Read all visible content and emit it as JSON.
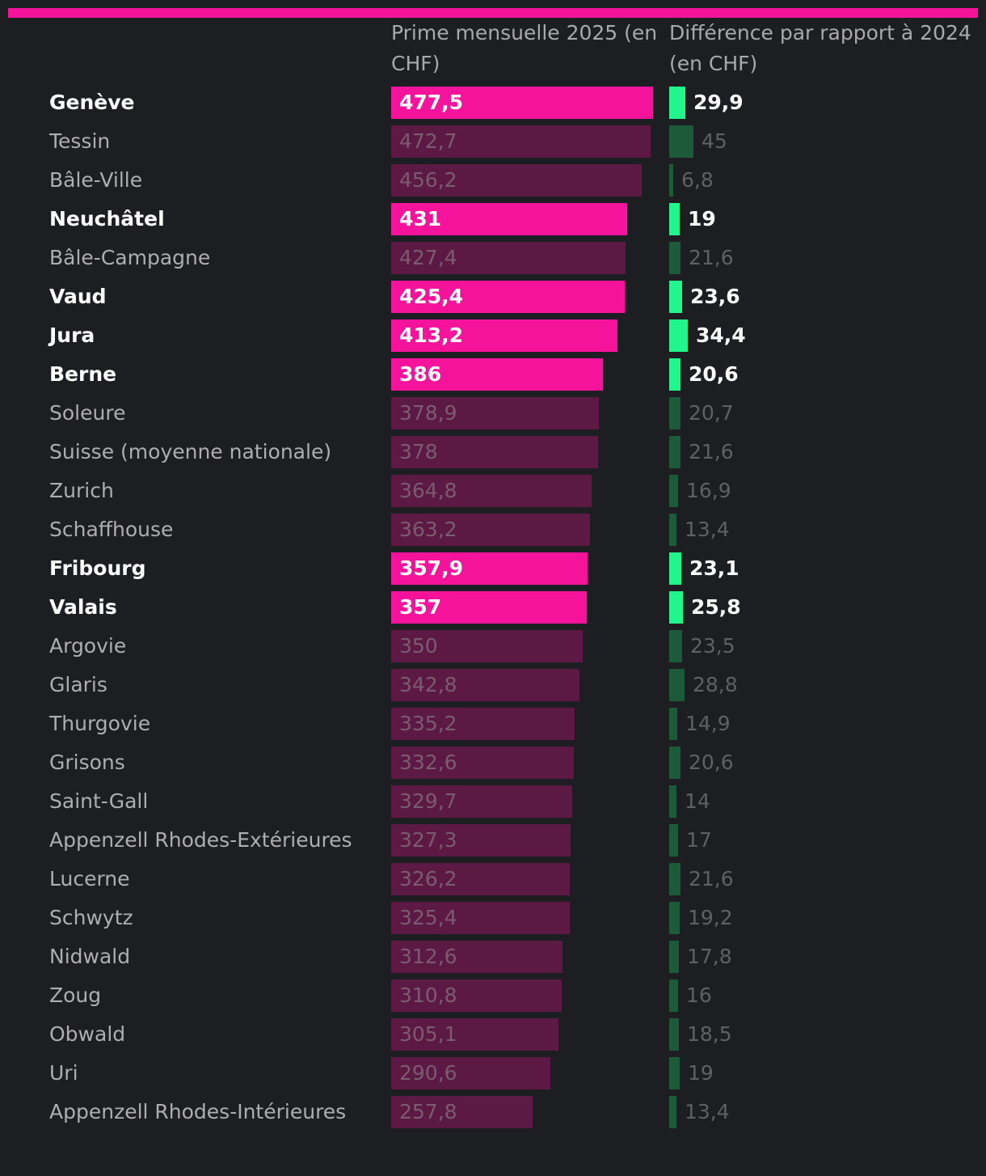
{
  "colors": {
    "background": "#1d1e21",
    "accent": "#f4139a",
    "accent_dim": "#5c1944",
    "green": "#22f58c",
    "green_dim": "#1c5a3a"
  },
  "chart_data": {
    "type": "bar",
    "orientation": "horizontal",
    "column_headers": {
      "prime": "Prime mensuelle 2025 (en CHF)",
      "diff": "Différence par rapport à 2024 (en CHF)"
    },
    "categories": [
      "Genève",
      "Tessin",
      "Bâle-Ville",
      "Neuchâtel",
      "Bâle-Campagne",
      "Vaud",
      "Jura",
      "Berne",
      "Soleure",
      "Suisse (moyenne nationale)",
      "Zurich",
      "Schaffhouse",
      "Fribourg",
      "Valais",
      "Argovie",
      "Glaris",
      "Thurgovie",
      "Grisons",
      "Saint-Gall",
      "Appenzell Rhodes-Extérieures",
      "Lucerne",
      "Schwytz",
      "Nidwald",
      "Zoug",
      "Obwald",
      "Uri",
      "Appenzell Rhodes-Intérieures"
    ],
    "series": [
      {
        "values": [
          477.5,
          472.7,
          456.2,
          431,
          427.4,
          425.4,
          413.2,
          386,
          378.9,
          378,
          364.8,
          363.2,
          357.9,
          357,
          350,
          342.8,
          335.2,
          332.6,
          329.7,
          327.3,
          326.2,
          325.4,
          312.6,
          310.8,
          305.1,
          290.6,
          257.8
        ],
        "labels": [
          "477,5",
          "472,7",
          "456,2",
          "431",
          "427,4",
          "425,4",
          "413,2",
          "386",
          "378,9",
          "378",
          "364,8",
          "363,2",
          "357,9",
          "357",
          "350",
          "342,8",
          "335,2",
          "332,6",
          "329,7",
          "327,3",
          "326,2",
          "325,4",
          "312,6",
          "310,8",
          "305,1",
          "290,6",
          "257,8"
        ]
      },
      {
        "values": [
          29.9,
          45,
          6.8,
          19,
          21.6,
          23.6,
          34.4,
          20.6,
          20.7,
          21.6,
          16.9,
          13.4,
          23.1,
          25.8,
          23.5,
          28.8,
          14.9,
          20.6,
          14,
          17,
          21.6,
          19.2,
          17.8,
          16,
          18.5,
          19,
          13.4
        ],
        "labels": [
          "29,9",
          "45",
          "6,8",
          "19",
          "21,6",
          "23,6",
          "34,4",
          "20,6",
          "20,7",
          "21,6",
          "16,9",
          "13,4",
          "23,1",
          "25,8",
          "23,5",
          "28,8",
          "14,9",
          "20,6",
          "14",
          "17",
          "21,6",
          "19,2",
          "17,8",
          "16",
          "18,5",
          "19",
          "13,4"
        ]
      }
    ],
    "highlighted": [
      "Genève",
      "Neuchâtel",
      "Vaud",
      "Jura",
      "Berne",
      "Fribourg",
      "Valais"
    ],
    "xlim_prime": [
      0,
      477.5
    ],
    "xlim_diff": [
      0,
      45
    ]
  }
}
